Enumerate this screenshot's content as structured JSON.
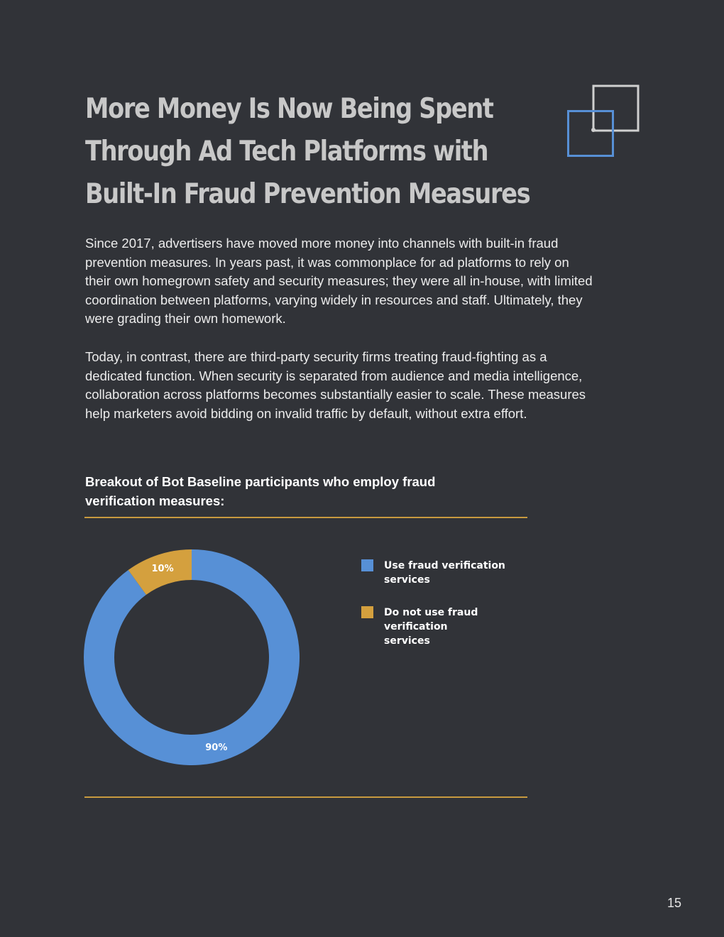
{
  "page": {
    "title_lines": [
      "More Money Is Now Being Spent",
      "Through Ad Tech Platforms with",
      "Built-In Fraud Prevention Measures"
    ],
    "paragraph_1_lines": [
      "Since 2017, advertisers have moved more money into channels with built-in fraud",
      "prevention measures. In years past, it was commonplace for ad platforms to rely on",
      "their own homegrown safety and security measures; they were all in-house, with limited",
      "coordination between platforms, varying widely in resources and staff. Ultimately, they",
      "were grading their own homework."
    ],
    "paragraph_2_lines": [
      "Today, in contrast, there are third-party security firms treating fraud-fighting as a",
      "dedicated function. When security is separated from audience and media intelligence,",
      "collaboration across platforms becomes substantially easier to scale. These measures",
      "help marketers avoid bidding on invalid traffic by default, without extra effort."
    ],
    "page_number": "15"
  },
  "colors": {
    "background": "#313338",
    "title": "#c8c8c8",
    "accent_blue": "#5790d6",
    "accent_gold": "#d4a03e",
    "rule": "#c89a3f",
    "logo_gray": "#d0d0d0"
  },
  "chart_data": {
    "type": "pie",
    "style": "donut",
    "title_lines": [
      "Breakout of Bot Baseline participants who employ fraud",
      "verification measures:"
    ],
    "series": [
      {
        "name": "Use fraud verification services",
        "value": 90,
        "label": "90%",
        "color": "#5790d6"
      },
      {
        "name": "Do not use fraud verification services",
        "value": 10,
        "label": "10%",
        "color": "#d4a03e"
      }
    ],
    "legend": [
      {
        "lines": [
          "Use fraud verification",
          "services"
        ],
        "color": "#5790d6"
      },
      {
        "lines": [
          "Do not use fraud verification",
          "services"
        ],
        "color": "#d4a03e"
      }
    ],
    "legend_position": "right"
  }
}
